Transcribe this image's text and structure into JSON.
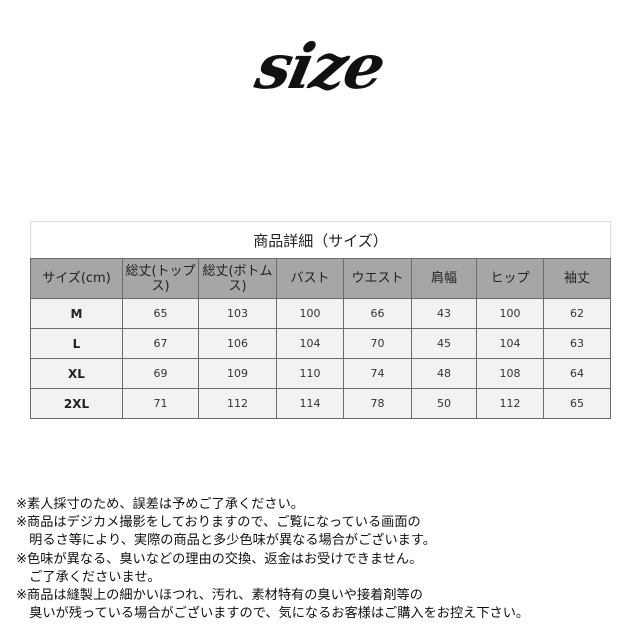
{
  "logo_text": "size",
  "table": {
    "title": "商品詳細（サイズ）",
    "headers": [
      "サイズ(cm)",
      "総丈(トップス)",
      "総丈(ボトムス)",
      "バスト",
      "ウエスト",
      "肩幅",
      "ヒップ",
      "袖丈"
    ],
    "rows": [
      [
        "M",
        "65",
        "103",
        "100",
        "66",
        "43",
        "100",
        "62"
      ],
      [
        "L",
        "67",
        "106",
        "104",
        "70",
        "45",
        "104",
        "63"
      ],
      [
        "XL",
        "69",
        "109",
        "110",
        "74",
        "48",
        "108",
        "64"
      ],
      [
        "2XL",
        "71",
        "112",
        "114",
        "78",
        "50",
        "112",
        "65"
      ]
    ]
  },
  "notes": [
    "※素人採寸のため、誤差は予めご了承ください。",
    "※商品はデジカメ撮影をしておりますので、ご覧になっている画面の",
    "　明るさ等により、実際の商品と多少色味が異なる場合がございます。",
    "※色味が異なる、臭いなどの理由の交換、返金はお受けできません。",
    "　ご了承くださいませ。",
    "※商品は縫製上の細かいほつれ、汚れ、素材特有の臭いや接着剤等の",
    "　臭いが残っている場合がございますので、気になるお客様はご購入をお控え下さい。"
  ]
}
